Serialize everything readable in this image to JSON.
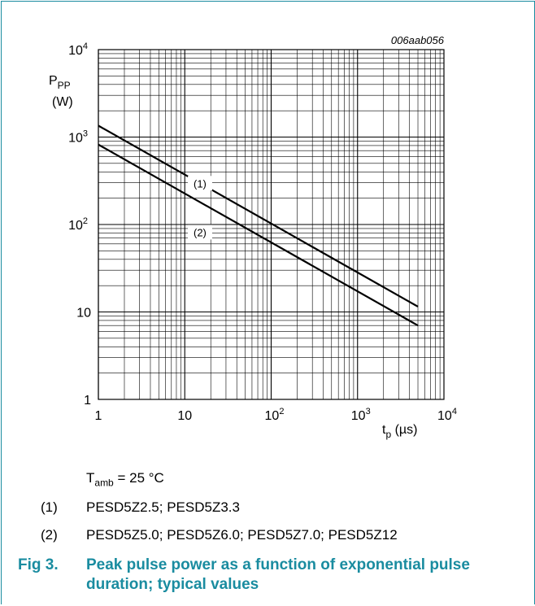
{
  "figure_code": "006aab056",
  "chart_data": {
    "type": "line",
    "x_scale": "log",
    "y_scale": "log",
    "xlim": [
      1,
      10000
    ],
    "ylim": [
      1,
      10000
    ],
    "grid": true,
    "ylabel_main": "P",
    "ylabel_sub": "PP",
    "ylabel_unit": "(W)",
    "xlabel_main": "t",
    "xlabel_sub": "p",
    "xlabel_unit": "(µs)",
    "x_ticks": [
      {
        "value": 1,
        "base": "1",
        "exp": ""
      },
      {
        "value": 10,
        "base": "10",
        "exp": ""
      },
      {
        "value": 100,
        "base": "10",
        "exp": "2"
      },
      {
        "value": 1000,
        "base": "10",
        "exp": "3"
      },
      {
        "value": 10000,
        "base": "10",
        "exp": "4"
      }
    ],
    "y_ticks": [
      {
        "value": 1,
        "base": "1",
        "exp": ""
      },
      {
        "value": 10,
        "base": "10",
        "exp": ""
      },
      {
        "value": 100,
        "base": "10",
        "exp": "2"
      },
      {
        "value": 1000,
        "base": "10",
        "exp": "3"
      },
      {
        "value": 10000,
        "base": "10",
        "exp": "4"
      }
    ],
    "series": [
      {
        "name": "(1)",
        "x": [
          1,
          5000
        ],
        "y": [
          1350,
          11.5
        ],
        "label_x": 15,
        "label_y": 290
      },
      {
        "name": "(2)",
        "x": [
          1,
          5000
        ],
        "y": [
          820,
          7
        ],
        "label_x": 15,
        "label_y": 80
      }
    ]
  },
  "conditions": {
    "t_main": "T",
    "t_sub": "amb",
    "t_rest": " = 25 °C"
  },
  "legend_notes": [
    {
      "num": "(1)",
      "text": "PESD5Z2.5; PESD5Z3.3"
    },
    {
      "num": "(2)",
      "text": "PESD5Z5.0; PESD5Z6.0; PESD5Z7.0; PESD5Z12"
    }
  ],
  "caption": {
    "fig": "Fig 3.",
    "text": "Peak pulse power as a function of exponential pulse duration; typical values"
  }
}
